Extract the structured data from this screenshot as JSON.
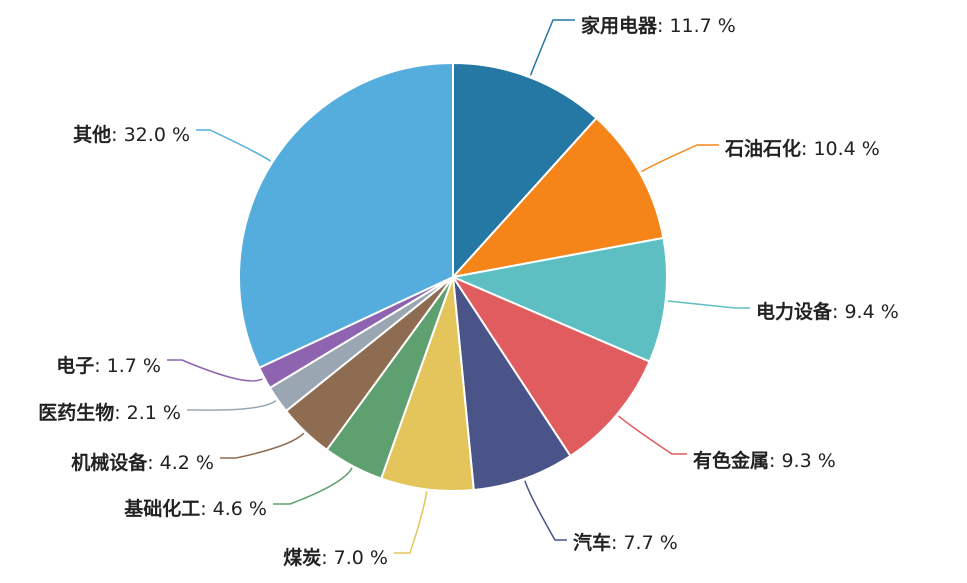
{
  "chart_data": {
    "type": "pie",
    "unit_suffix": " %",
    "grid": false,
    "legend": "none",
    "slices": [
      {
        "name": "家用电器",
        "value": 11.7,
        "color": "#2577a4"
      },
      {
        "name": "石油石化",
        "value": 10.4,
        "color": "#f58519"
      },
      {
        "name": "电力设备",
        "value": 9.4,
        "color": "#5ebfc2"
      },
      {
        "name": "有色金属",
        "value": 9.3,
        "color": "#e05c5e"
      },
      {
        "name": "汽车",
        "value": 7.7,
        "color": "#4a5489"
      },
      {
        "name": "煤炭",
        "value": 7.0,
        "color": "#e3c55c"
      },
      {
        "name": "基础化工",
        "value": 4.6,
        "color": "#5fa070"
      },
      {
        "name": "机械设备",
        "value": 4.2,
        "color": "#8d6c52"
      },
      {
        "name": "医药生物",
        "value": 2.1,
        "color": "#9aa7b2"
      },
      {
        "name": "电子",
        "value": 1.7,
        "color": "#8e63b0"
      },
      {
        "name": "其他",
        "value": 32.0,
        "color": "#54addc"
      }
    ]
  }
}
